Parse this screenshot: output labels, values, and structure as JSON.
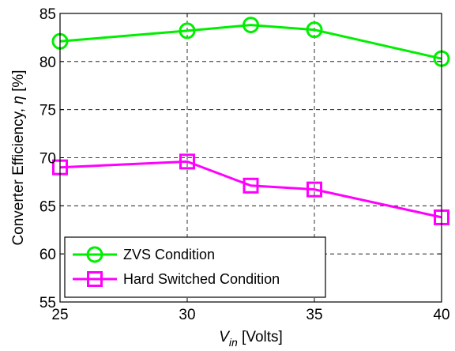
{
  "chart_data": {
    "type": "line",
    "title": "",
    "xlabel": {
      "main": "V",
      "sub": "in",
      "rest": " [Volts]"
    },
    "ylabel": {
      "text": "Converter Efficiency, ",
      "symbol": "η",
      "rest": " [%]"
    },
    "xlim": [
      25,
      40
    ],
    "ylim": [
      55,
      85
    ],
    "xticks": [
      25,
      30,
      35,
      40
    ],
    "yticks": [
      55,
      60,
      65,
      70,
      75,
      80,
      85
    ],
    "grid": true,
    "grid_style": "dashed",
    "legend_position": "bottom-left",
    "series": [
      {
        "name": "ZVS Condition",
        "color": "#00ee00",
        "marker": "circle",
        "x": [
          25,
          30,
          32.5,
          35,
          40
        ],
        "y": [
          82.1,
          83.2,
          83.8,
          83.3,
          80.3
        ]
      },
      {
        "name": "Hard Switched Condition",
        "color": "#ff00ff",
        "marker": "square",
        "x": [
          25,
          30,
          32.5,
          35,
          40
        ],
        "y": [
          69.0,
          69.6,
          67.1,
          66.7,
          63.8
        ]
      }
    ]
  }
}
